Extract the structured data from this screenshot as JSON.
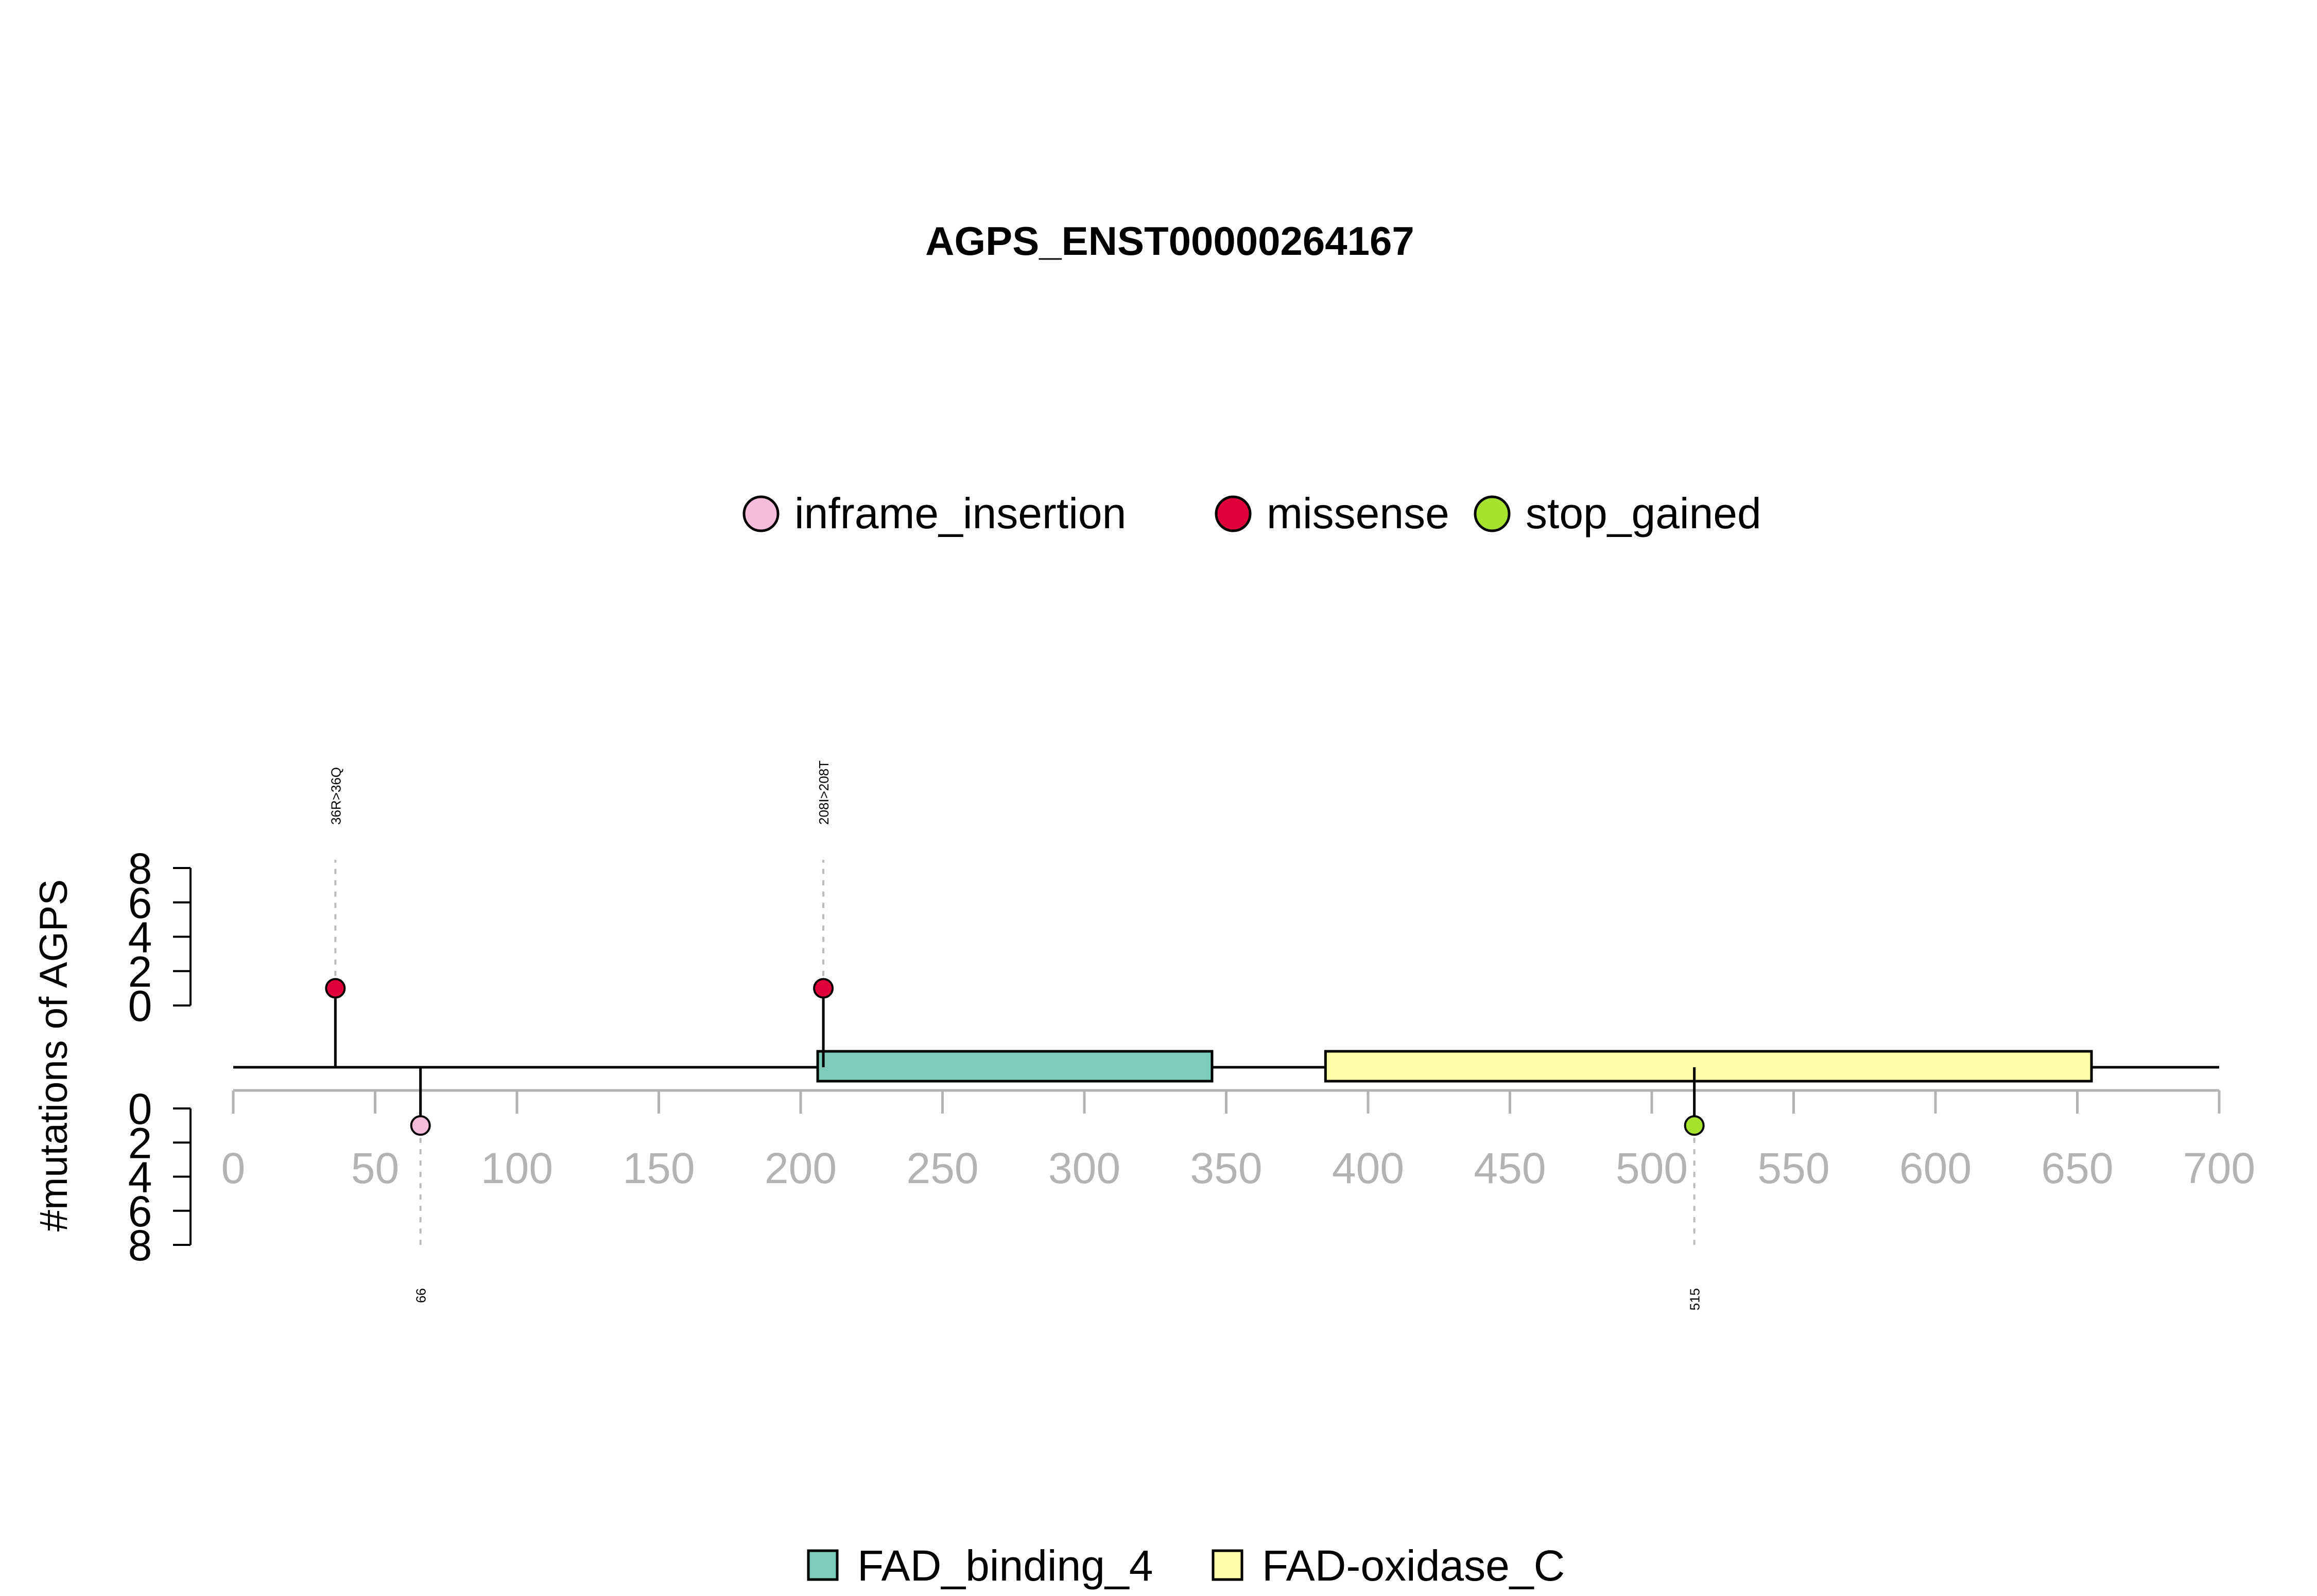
{
  "chart_data": {
    "type": "lollipop",
    "title": "AGPS_ENST00000264167",
    "ylabel": "#mutations of AGPS",
    "xlim": [
      0,
      700
    ],
    "x_ticks": [
      "0",
      "50",
      "100",
      "150",
      "200",
      "250",
      "300",
      "350",
      "400",
      "450",
      "500",
      "550",
      "600",
      "650",
      "700"
    ],
    "ylim_top": [
      0,
      8
    ],
    "ylim_bottom": [
      0,
      8
    ],
    "y_ticks_top": [
      "8",
      "6",
      "4",
      "2",
      "0"
    ],
    "y_ticks_bottom": [
      "0",
      "2",
      "4",
      "6",
      "8"
    ],
    "protein_length": 700,
    "mutation_legend": [
      {
        "name": "inframe_insertion",
        "color": "#F7BCDC"
      },
      {
        "name": "missense",
        "color": "#E0003A"
      },
      {
        "name": "stop_gained",
        "color": "#A6E22E"
      }
    ],
    "mutations": [
      {
        "position": 36,
        "count": 1,
        "type": "missense",
        "label": "36R>36Q",
        "side": "top"
      },
      {
        "position": 208,
        "count": 1,
        "type": "missense",
        "label": "208I>208T",
        "side": "top"
      },
      {
        "position": 66,
        "count": 1,
        "type": "inframe_insertion",
        "label": "66",
        "side": "bottom"
      },
      {
        "position": 515,
        "count": 1,
        "type": "stop_gained",
        "label": "515",
        "side": "bottom"
      }
    ],
    "domains": [
      {
        "name": "FAD_binding_4",
        "start": 206,
        "end": 345,
        "color": "#7DCCB8"
      },
      {
        "name": "FAD-oxidase_C",
        "start": 385,
        "end": 655,
        "color": "#FFFFA8"
      }
    ],
    "domain_legend": [
      {
        "name": "FAD_binding_4",
        "color": "#7DCCB8"
      },
      {
        "name": "FAD-oxidase_C",
        "color": "#FFFFA8"
      }
    ]
  }
}
